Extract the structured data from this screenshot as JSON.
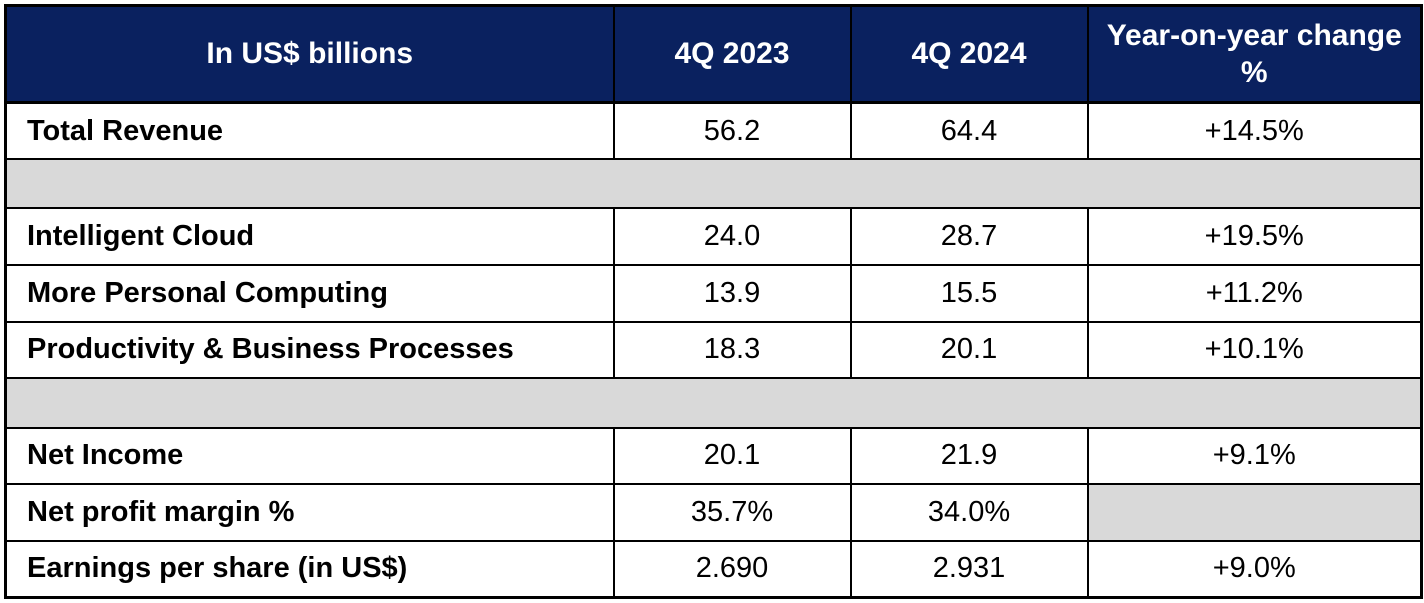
{
  "colors": {
    "header_background": "#0A215F",
    "header_text": "#FFFFFF",
    "spacer_background": "#D9D9D9",
    "border": "#000000",
    "body_text": "#000000"
  },
  "table": {
    "columns": [
      {
        "label": "In US$ billions"
      },
      {
        "label": "4Q 2023"
      },
      {
        "label": "4Q 2024"
      },
      {
        "label": "Year-on-year change %"
      }
    ],
    "rows": [
      {
        "type": "data",
        "label": "Total Revenue",
        "q4_2023": "56.2",
        "q4_2024": "64.4",
        "yoy": "+14.5%"
      },
      {
        "type": "spacer"
      },
      {
        "type": "data",
        "label": "Intelligent Cloud",
        "q4_2023": "24.0",
        "q4_2024": "28.7",
        "yoy": "+19.5%"
      },
      {
        "type": "data",
        "label": "More Personal Computing",
        "q4_2023": "13.9",
        "q4_2024": "15.5",
        "yoy": "+11.2%"
      },
      {
        "type": "data",
        "label": "Productivity & Business Processes",
        "q4_2023": "18.3",
        "q4_2024": "20.1",
        "yoy": "+10.1%"
      },
      {
        "type": "spacer"
      },
      {
        "type": "data",
        "label": "Net Income",
        "q4_2023": "20.1",
        "q4_2024": "21.9",
        "yoy": "+9.1%"
      },
      {
        "type": "data",
        "label": "Net profit margin %",
        "q4_2023": "35.7%",
        "q4_2024": "34.0%",
        "yoy": "",
        "yoy_muted": true
      },
      {
        "type": "data",
        "label": "Earnings per share (in US$)",
        "q4_2023": "2.690",
        "q4_2024": "2.931",
        "yoy": "+9.0%"
      }
    ]
  },
  "chart_data": {
    "type": "table",
    "title": "In US$ billions",
    "columns": [
      "In US$ billions",
      "4Q 2023",
      "4Q 2024",
      "Year-on-year change %"
    ],
    "rows": [
      [
        "Total Revenue",
        56.2,
        64.4,
        "+14.5%"
      ],
      [
        "Intelligent Cloud",
        24.0,
        28.7,
        "+19.5%"
      ],
      [
        "More Personal Computing",
        13.9,
        15.5,
        "+11.2%"
      ],
      [
        "Productivity & Business Processes",
        18.3,
        20.1,
        "+10.1%"
      ],
      [
        "Net Income",
        20.1,
        21.9,
        "+9.1%"
      ],
      [
        "Net profit margin %",
        "35.7%",
        "34.0%",
        null
      ],
      [
        "Earnings per share (in US$)",
        2.69,
        2.931,
        "+9.0%"
      ]
    ]
  }
}
